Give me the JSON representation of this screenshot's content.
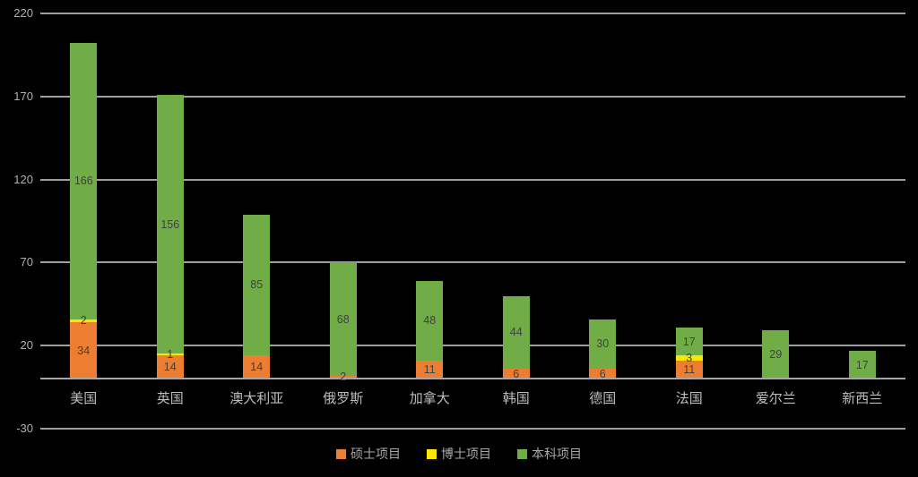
{
  "chart_data": {
    "type": "bar",
    "stacked": true,
    "background_color": "#000000",
    "categories": [
      "美国",
      "英国",
      "澳大利亚",
      "俄罗斯",
      "加拿大",
      "韩国",
      "德国",
      "法国",
      "爱尔兰",
      "新西兰"
    ],
    "series": [
      {
        "name": "硕士项目",
        "color": "#ED7D31",
        "values": [
          34,
          14,
          14,
          2,
          11,
          6,
          6,
          11,
          0,
          0
        ]
      },
      {
        "name": "博士项目",
        "color": "#FFE600",
        "values": [
          2,
          1,
          0,
          0,
          0,
          0,
          0,
          3,
          0,
          0
        ]
      },
      {
        "name": "本科项目",
        "color": "#70AD47",
        "values": [
          166,
          156,
          85,
          68,
          48,
          44,
          30,
          17,
          29,
          17
        ]
      }
    ],
    "title": "",
    "xlabel": "",
    "ylabel": "",
    "ylim": [
      -30,
      220
    ],
    "yticks": [
      220,
      170,
      120,
      70,
      20,
      -30
    ],
    "grid": true,
    "gridline_color": "#9f9f9f",
    "data_label_color": "#404040",
    "axis_text_color": "#b0b0b0",
    "legend_position": "bottom"
  },
  "legend": {
    "items": [
      {
        "label": "硕士项目",
        "color": "#ED7D31"
      },
      {
        "label": "博士项目",
        "color": "#FFE600"
      },
      {
        "label": "本科项目",
        "color": "#70AD47"
      }
    ]
  }
}
